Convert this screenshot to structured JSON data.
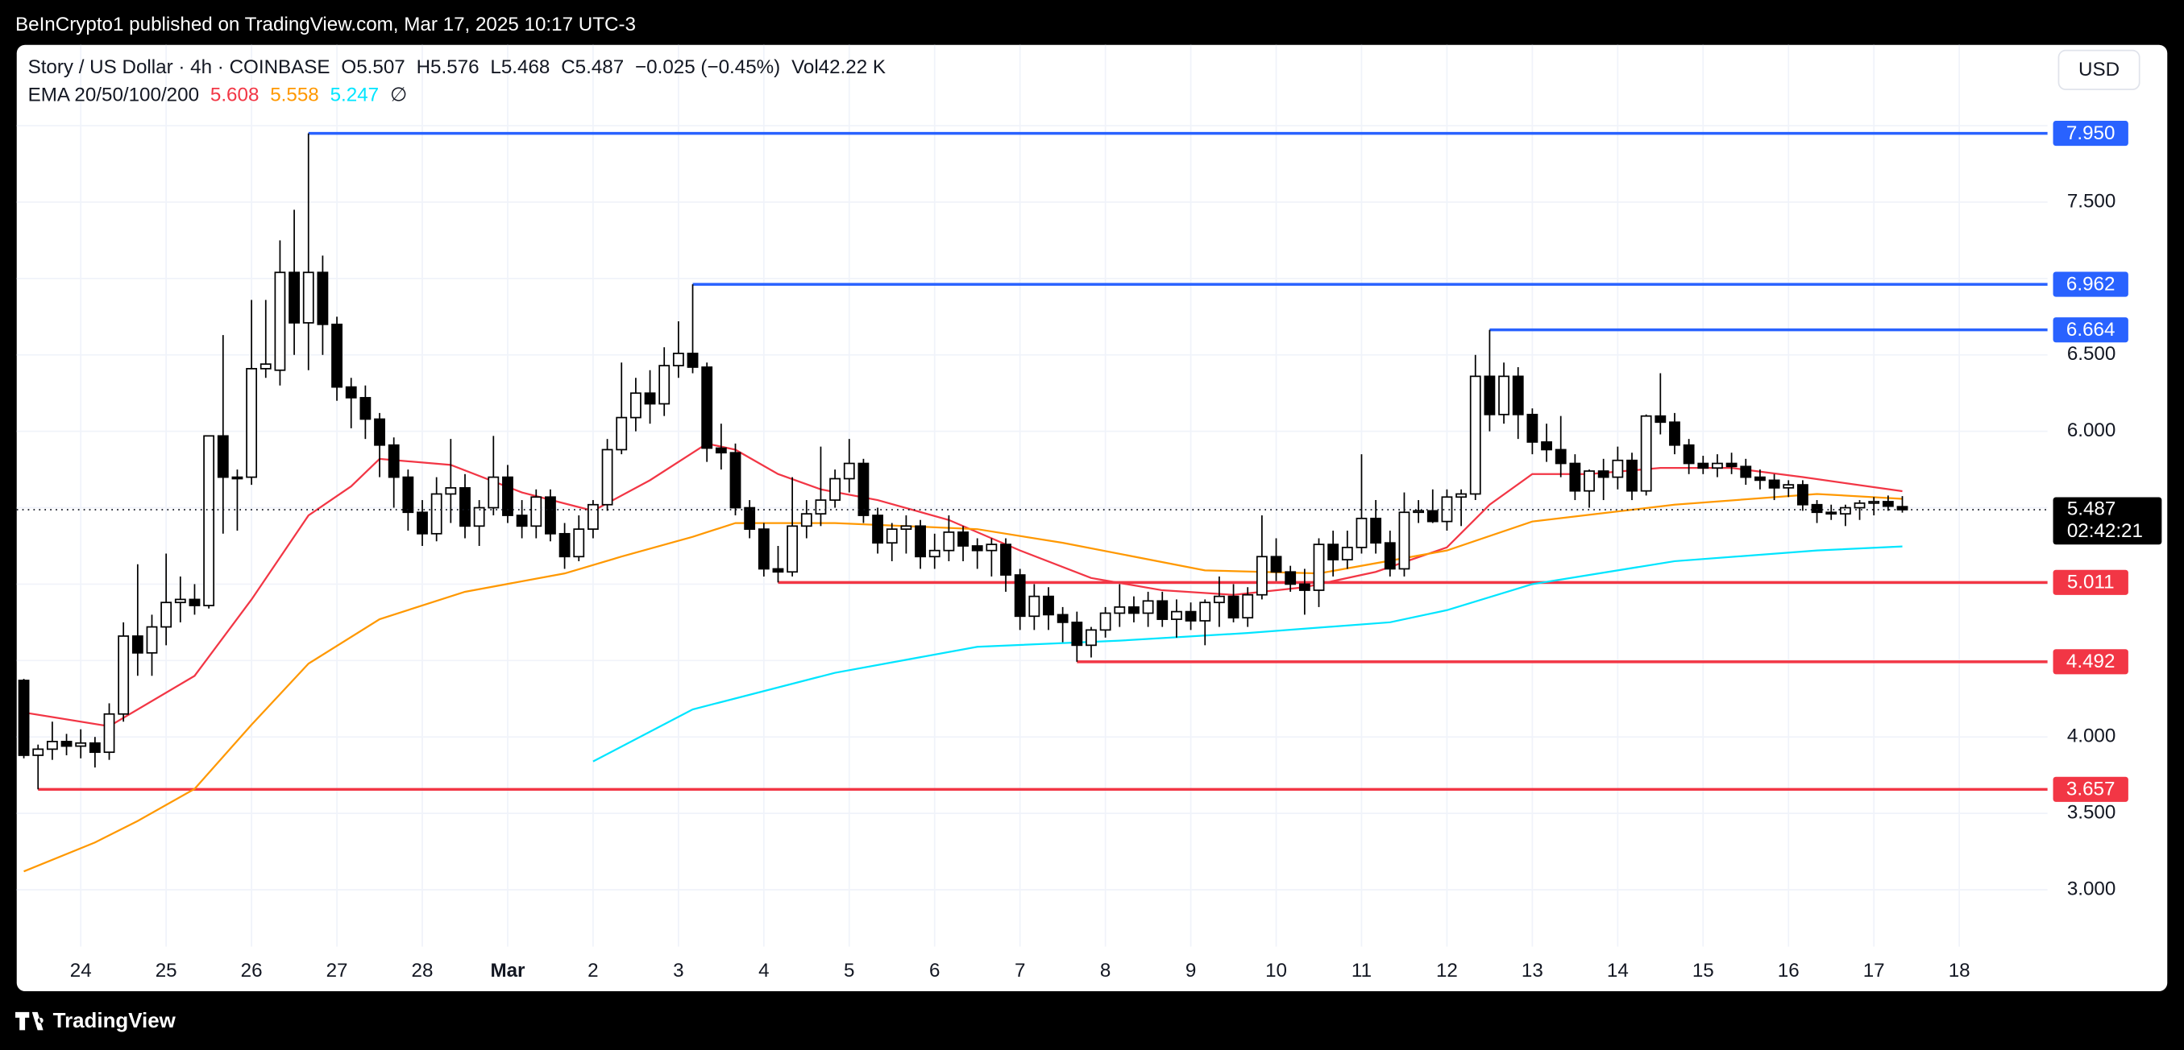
{
  "header": "BeInCrypto1 published on TradingView.com, Mar 17, 2025 10:17 UTC-3",
  "footer": "TradingView",
  "currency": "USD",
  "chart_data": {
    "type": "candlestick",
    "title": "Story / US Dollar · 4h · COINBASE",
    "ohlc_legend": [
      "O5.507",
      "H5.576",
      "L5.468",
      "C5.487",
      "−0.025 (−0.45%)",
      "Vol42.22 K"
    ],
    "ema_legend": "EMA 20/50/100/200",
    "ema_missing": "∅",
    "up_color": "#ffffff",
    "down_color": "#000000",
    "xlim": [
      -0.5,
      142.2
    ],
    "ylim": [
      2.336,
      8.529
    ],
    "grid": true,
    "xticks": [
      {
        "value": 4,
        "label": "24"
      },
      {
        "value": 10,
        "label": "25"
      },
      {
        "value": 16,
        "label": "26"
      },
      {
        "value": 22,
        "label": "27"
      },
      {
        "value": 28,
        "label": "28"
      },
      {
        "value": 34,
        "label": "Mar"
      },
      {
        "value": 40,
        "label": "2"
      },
      {
        "value": 46,
        "label": "3"
      },
      {
        "value": 52,
        "label": "4"
      },
      {
        "value": 58,
        "label": "5"
      },
      {
        "value": 64,
        "label": "6"
      },
      {
        "value": 70,
        "label": "7"
      },
      {
        "value": 76,
        "label": "8"
      },
      {
        "value": 82,
        "label": "9"
      },
      {
        "value": 88,
        "label": "10"
      },
      {
        "value": 94,
        "label": "11"
      },
      {
        "value": 100,
        "label": "12"
      },
      {
        "value": 106,
        "label": "13"
      },
      {
        "value": 112,
        "label": "14"
      },
      {
        "value": 118,
        "label": "15"
      },
      {
        "value": 124,
        "label": "16"
      },
      {
        "value": 130,
        "label": "17"
      },
      {
        "value": 136,
        "label": "18"
      }
    ],
    "yticks": [
      {
        "value": 3,
        "label": "3.000"
      },
      {
        "value": 3.5,
        "label": "3.500"
      },
      {
        "value": 4,
        "label": "4.000"
      },
      {
        "value": 4.5,
        "label": null
      },
      {
        "value": 5,
        "label": null
      },
      {
        "value": 5.5,
        "label": null
      },
      {
        "value": 6,
        "label": "6.000"
      },
      {
        "value": 6.5,
        "label": "6.500"
      },
      {
        "value": 7,
        "label": null
      },
      {
        "value": 7.5,
        "label": "7.500"
      },
      {
        "value": 8,
        "label": null
      }
    ],
    "ohlc": [
      [
        4.37,
        4.38,
        3.86,
        3.88
      ],
      [
        3.88,
        3.95,
        3.657,
        3.92
      ],
      [
        3.92,
        4.1,
        3.85,
        3.97
      ],
      [
        3.97,
        4.02,
        3.88,
        3.94
      ],
      [
        3.94,
        4.05,
        3.86,
        3.96
      ],
      [
        3.96,
        4.0,
        3.8,
        3.9
      ],
      [
        3.9,
        4.22,
        3.85,
        4.15
      ],
      [
        4.15,
        4.75,
        4.1,
        4.66
      ],
      [
        4.66,
        5.13,
        4.4,
        4.55
      ],
      [
        4.55,
        4.8,
        4.4,
        4.72
      ],
      [
        4.72,
        5.2,
        4.6,
        4.88
      ],
      [
        4.88,
        5.05,
        4.75,
        4.9
      ],
      [
        4.9,
        5.0,
        4.8,
        4.86
      ],
      [
        4.86,
        5.97,
        4.84,
        5.97
      ],
      [
        5.97,
        6.63,
        5.33,
        5.7
      ],
      [
        5.7,
        5.75,
        5.35,
        5.69
      ],
      [
        5.7,
        6.86,
        5.65,
        6.41
      ],
      [
        6.41,
        6.86,
        6.35,
        6.44
      ],
      [
        6.4,
        7.25,
        6.3,
        7.04
      ],
      [
        7.04,
        7.45,
        6.5,
        6.71
      ],
      [
        6.71,
        7.95,
        6.4,
        7.04
      ],
      [
        7.04,
        7.15,
        6.5,
        6.7
      ],
      [
        6.7,
        6.75,
        6.2,
        6.29
      ],
      [
        6.29,
        6.35,
        6.02,
        6.22
      ],
      [
        6.22,
        6.3,
        5.95,
        6.08
      ],
      [
        6.08,
        6.12,
        5.7,
        5.91
      ],
      [
        5.91,
        5.96,
        5.5,
        5.7
      ],
      [
        5.7,
        5.75,
        5.35,
        5.47
      ],
      [
        5.47,
        5.55,
        5.25,
        5.33
      ],
      [
        5.33,
        5.7,
        5.28,
        5.59
      ],
      [
        5.59,
        5.95,
        5.4,
        5.63
      ],
      [
        5.63,
        5.72,
        5.3,
        5.38
      ],
      [
        5.38,
        5.55,
        5.25,
        5.5
      ],
      [
        5.5,
        5.97,
        5.45,
        5.7
      ],
      [
        5.7,
        5.78,
        5.4,
        5.45
      ],
      [
        5.45,
        5.55,
        5.3,
        5.38
      ],
      [
        5.38,
        5.62,
        5.3,
        5.57
      ],
      [
        5.57,
        5.62,
        5.28,
        5.33
      ],
      [
        5.33,
        5.4,
        5.1,
        5.18
      ],
      [
        5.18,
        5.45,
        5.15,
        5.36
      ],
      [
        5.36,
        5.55,
        5.3,
        5.52
      ],
      [
        5.52,
        5.95,
        5.48,
        5.88
      ],
      [
        5.88,
        6.45,
        5.85,
        6.09
      ],
      [
        6.09,
        6.35,
        6.0,
        6.25
      ],
      [
        6.25,
        6.4,
        6.05,
        6.18
      ],
      [
        6.18,
        6.55,
        6.1,
        6.43
      ],
      [
        6.43,
        6.72,
        6.35,
        6.51
      ],
      [
        6.51,
        6.962,
        6.38,
        6.42
      ],
      [
        6.42,
        6.45,
        5.8,
        5.89
      ],
      [
        5.89,
        6.05,
        5.75,
        5.86
      ],
      [
        5.86,
        5.92,
        5.45,
        5.5
      ],
      [
        5.5,
        5.55,
        5.3,
        5.36
      ],
      [
        5.36,
        5.4,
        5.05,
        5.1
      ],
      [
        5.1,
        5.25,
        5.011,
        5.08
      ],
      [
        5.08,
        5.7,
        5.05,
        5.38
      ],
      [
        5.38,
        5.55,
        5.3,
        5.46
      ],
      [
        5.46,
        5.9,
        5.38,
        5.55
      ],
      [
        5.55,
        5.75,
        5.5,
        5.69
      ],
      [
        5.69,
        5.95,
        5.6,
        5.79
      ],
      [
        5.79,
        5.82,
        5.4,
        5.45
      ],
      [
        5.45,
        5.5,
        5.2,
        5.27
      ],
      [
        5.27,
        5.4,
        5.15,
        5.36
      ],
      [
        5.36,
        5.45,
        5.2,
        5.38
      ],
      [
        5.38,
        5.42,
        5.1,
        5.18
      ],
      [
        5.18,
        5.33,
        5.1,
        5.22
      ],
      [
        5.22,
        5.45,
        5.15,
        5.34
      ],
      [
        5.34,
        5.38,
        5.15,
        5.25
      ],
      [
        5.25,
        5.3,
        5.1,
        5.22
      ],
      [
        5.22,
        5.3,
        5.05,
        5.26
      ],
      [
        5.26,
        5.3,
        4.95,
        5.06
      ],
      [
        5.06,
        5.1,
        4.7,
        4.79
      ],
      [
        4.79,
        5.0,
        4.7,
        4.92
      ],
      [
        4.92,
        4.98,
        4.7,
        4.8
      ],
      [
        4.8,
        4.85,
        4.62,
        4.75
      ],
      [
        4.75,
        4.82,
        4.492,
        4.6
      ],
      [
        4.6,
        4.72,
        4.52,
        4.7
      ],
      [
        4.7,
        4.85,
        4.65,
        4.81
      ],
      [
        4.81,
        5.0,
        4.72,
        4.85
      ],
      [
        4.85,
        4.92,
        4.75,
        4.81
      ],
      [
        4.81,
        4.95,
        4.72,
        4.89
      ],
      [
        4.89,
        4.95,
        4.72,
        4.77
      ],
      [
        4.77,
        4.9,
        4.65,
        4.82
      ],
      [
        4.82,
        4.88,
        4.7,
        4.76
      ],
      [
        4.76,
        4.9,
        4.6,
        4.88
      ],
      [
        4.88,
        5.05,
        4.72,
        4.92
      ],
      [
        4.92,
        5.0,
        4.75,
        4.78
      ],
      [
        4.78,
        4.98,
        4.72,
        4.93
      ],
      [
        4.93,
        5.45,
        4.9,
        5.18
      ],
      [
        5.18,
        5.3,
        5.02,
        5.08
      ],
      [
        5.08,
        5.12,
        4.95,
        5.0
      ],
      [
        5.0,
        5.1,
        4.8,
        4.96
      ],
      [
        4.96,
        5.3,
        4.85,
        5.26
      ],
      [
        5.26,
        5.35,
        5.05,
        5.16
      ],
      [
        5.16,
        5.35,
        5.1,
        5.24
      ],
      [
        5.24,
        5.85,
        5.2,
        5.43
      ],
      [
        5.43,
        5.55,
        5.2,
        5.27
      ],
      [
        5.27,
        5.35,
        5.05,
        5.1
      ],
      [
        5.1,
        5.6,
        5.05,
        5.47
      ],
      [
        5.47,
        5.55,
        5.4,
        5.48
      ],
      [
        5.48,
        5.62,
        5.4,
        5.41
      ],
      [
        5.41,
        5.62,
        5.35,
        5.57
      ],
      [
        5.57,
        5.62,
        5.38,
        5.59
      ],
      [
        5.59,
        6.5,
        5.55,
        6.36
      ],
      [
        6.36,
        6.664,
        6.0,
        6.11
      ],
      [
        6.11,
        6.45,
        6.05,
        6.36
      ],
      [
        6.36,
        6.42,
        5.95,
        6.11
      ],
      [
        6.11,
        6.15,
        5.85,
        5.93
      ],
      [
        5.93,
        6.05,
        5.8,
        5.88
      ],
      [
        5.88,
        6.1,
        5.7,
        5.79
      ],
      [
        5.79,
        5.85,
        5.55,
        5.61
      ],
      [
        5.61,
        5.75,
        5.5,
        5.74
      ],
      [
        5.74,
        5.82,
        5.55,
        5.7
      ],
      [
        5.7,
        5.9,
        5.62,
        5.81
      ],
      [
        5.81,
        5.86,
        5.55,
        5.61
      ],
      [
        5.61,
        6.11,
        5.58,
        6.1
      ],
      [
        6.1,
        6.38,
        5.98,
        6.06
      ],
      [
        6.06,
        6.12,
        5.85,
        5.91
      ],
      [
        5.91,
        5.95,
        5.72,
        5.79
      ],
      [
        5.79,
        5.84,
        5.72,
        5.76
      ],
      [
        5.76,
        5.85,
        5.7,
        5.79
      ],
      [
        5.79,
        5.86,
        5.72,
        5.77
      ],
      [
        5.77,
        5.82,
        5.65,
        5.7
      ],
      [
        5.7,
        5.75,
        5.62,
        5.68
      ],
      [
        5.68,
        5.72,
        5.55,
        5.63
      ],
      [
        5.63,
        5.68,
        5.57,
        5.65
      ],
      [
        5.65,
        5.68,
        5.48,
        5.52
      ],
      [
        5.52,
        5.55,
        5.4,
        5.47
      ],
      [
        5.47,
        5.52,
        5.42,
        5.46
      ],
      [
        5.46,
        5.52,
        5.38,
        5.5
      ],
      [
        5.5,
        5.55,
        5.42,
        5.53
      ],
      [
        5.53,
        5.57,
        5.45,
        5.54
      ],
      [
        5.54,
        5.58,
        5.48,
        5.51
      ],
      [
        5.507,
        5.576,
        5.468,
        5.487
      ]
    ],
    "ema": [
      {
        "color": "#f23645",
        "last_label": "5.608",
        "x": [
          0,
          6,
          12,
          16,
          20,
          23,
          25,
          30,
          35,
          40,
          44,
          48,
          50,
          53,
          56,
          60,
          65,
          70,
          75,
          80,
          85,
          90,
          95,
          100,
          103,
          106,
          110,
          115,
          120,
          125,
          132
        ],
        "values": [
          4.16,
          4.07,
          4.4,
          4.9,
          5.45,
          5.64,
          5.82,
          5.78,
          5.6,
          5.48,
          5.68,
          5.92,
          5.88,
          5.72,
          5.62,
          5.55,
          5.42,
          5.22,
          5.04,
          4.96,
          4.93,
          4.98,
          5.08,
          5.24,
          5.52,
          5.72,
          5.72,
          5.76,
          5.76,
          5.7,
          5.608
        ]
      },
      {
        "color": "#ff9800",
        "last_label": "5.558",
        "x": [
          0,
          5,
          8,
          12,
          16,
          20,
          25,
          31,
          38,
          42,
          47,
          50,
          57,
          67,
          73,
          83,
          91,
          100,
          106,
          116,
          126,
          132
        ],
        "values": [
          3.12,
          3.31,
          3.45,
          3.66,
          4.08,
          4.48,
          4.77,
          4.95,
          5.07,
          5.18,
          5.31,
          5.4,
          5.4,
          5.36,
          5.27,
          5.09,
          5.07,
          5.22,
          5.41,
          5.52,
          5.59,
          5.558
        ]
      },
      {
        "color": "#00e5ff",
        "last_label": "5.247",
        "x": [
          40,
          47,
          57,
          67,
          77,
          86,
          96,
          100,
          106,
          116,
          126,
          132
        ],
        "values": [
          3.84,
          4.18,
          4.42,
          4.59,
          4.63,
          4.68,
          4.75,
          4.83,
          5.0,
          5.15,
          5.22,
          5.247
        ]
      }
    ],
    "levels": [
      {
        "value": 7.95,
        "label": "7.950",
        "color": "#2962ff",
        "from": 20
      },
      {
        "value": 6.962,
        "label": "6.962",
        "color": "#2962ff",
        "from": 47
      },
      {
        "value": 6.664,
        "label": "6.664",
        "color": "#2962ff",
        "from": 103
      },
      {
        "value": 5.011,
        "label": "5.011",
        "color": "#f23645",
        "from": 53
      },
      {
        "value": 4.492,
        "label": "4.492",
        "color": "#f23645",
        "from": 74
      },
      {
        "value": 3.657,
        "label": "3.657",
        "color": "#f23645",
        "from": 1
      }
    ],
    "last": {
      "value": 5.487,
      "label": "5.487",
      "countdown": "02:42:21"
    }
  }
}
